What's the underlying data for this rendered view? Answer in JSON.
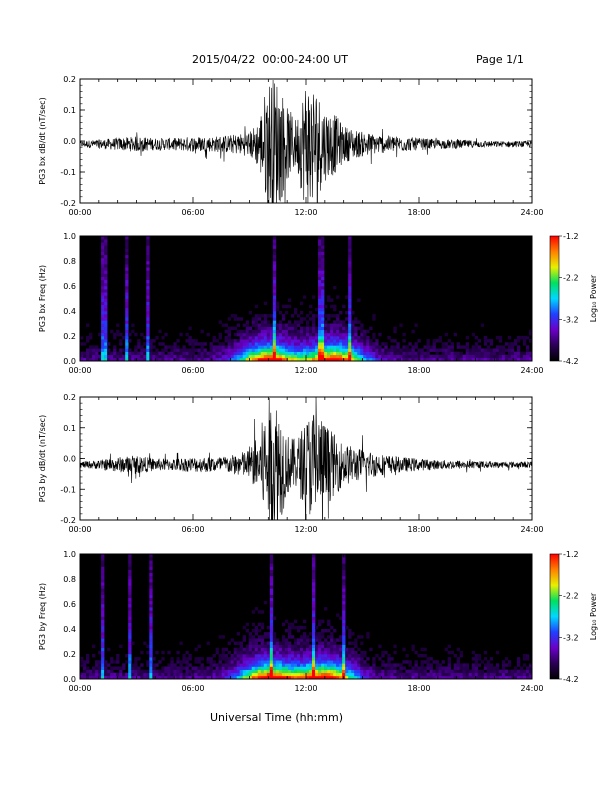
{
  "header": {
    "title": "2015/04/22  00:00-24:00 UT",
    "page": "Page 1/1"
  },
  "footer": {
    "xaxis_title": "Universal Time (hh:mm)"
  },
  "x_ticks": [
    "00:00",
    "06:00",
    "12:00",
    "18:00",
    "24:00"
  ],
  "colors": {
    "trace": "#000000",
    "spectrogram_background": "#000000",
    "colormap": [
      "#000000",
      "#2a0055",
      "#6a00c8",
      "#2040ff",
      "#00d8ff",
      "#00e060",
      "#e8f000",
      "#ff8000",
      "#ff0000"
    ]
  },
  "chart_data": [
    {
      "type": "line",
      "ylabel": "PG3 bx dB/dt (nT/sec)",
      "xlim": [
        0,
        24
      ],
      "ylim": [
        -0.2,
        0.2
      ],
      "yticks": [
        "-0.2",
        "-0.1",
        "0.0",
        "0.1",
        "0.2"
      ],
      "xticks": [
        "00:00",
        "06:00",
        "12:00",
        "18:00",
        "24:00"
      ],
      "baseline": -0.01,
      "envelope_x": [
        0,
        1,
        2,
        3,
        4,
        5,
        6,
        7,
        8,
        9,
        9.5,
        10,
        10.5,
        11,
        11.5,
        12,
        12.5,
        13,
        13.5,
        14,
        15,
        16,
        17,
        18,
        19,
        20,
        21,
        22,
        23,
        24
      ],
      "envelope_amp": [
        0.01,
        0.015,
        0.02,
        0.025,
        0.02,
        0.02,
        0.025,
        0.025,
        0.03,
        0.04,
        0.08,
        0.22,
        0.22,
        0.12,
        0.08,
        0.22,
        0.19,
        0.12,
        0.1,
        0.06,
        0.04,
        0.03,
        0.025,
        0.02,
        0.015,
        0.015,
        0.012,
        0.01,
        0.01,
        0.01
      ]
    },
    {
      "type": "heatmap",
      "ylabel": "PG3 bx Freq (Hz)",
      "xlim": [
        0,
        24
      ],
      "ylim": [
        0,
        1.0
      ],
      "yticks": [
        "0.0",
        "0.2",
        "0.4",
        "0.6",
        "0.8",
        "1.0"
      ],
      "xticks": [
        "00:00",
        "06:00",
        "12:00",
        "18:00",
        "24:00"
      ],
      "colorbar_label": "Log₁₀ Power",
      "colorbar_ticks": [
        "-1.2",
        "-2.2",
        "-3.2",
        "-4.2"
      ],
      "colorbar_range": [
        -4.2,
        -1.2
      ],
      "hotspot_hours": [
        10.0,
        13.5
      ],
      "line_features_hours": [
        1.3,
        2.5,
        3.6,
        10.3,
        12.8,
        14.3
      ]
    },
    {
      "type": "line",
      "ylabel": "PG3 by dB/dt (nT/sec)",
      "xlim": [
        0,
        24
      ],
      "ylim": [
        -0.2,
        0.2
      ],
      "yticks": [
        "-0.2",
        "-0.1",
        "0.0",
        "0.1",
        "0.2"
      ],
      "xticks": [
        "00:00",
        "06:00",
        "12:00",
        "18:00",
        "24:00"
      ],
      "baseline": -0.02,
      "envelope_x": [
        0,
        1,
        2,
        3,
        4,
        5,
        6,
        7,
        8,
        9,
        9.5,
        10,
        10.5,
        11,
        11.5,
        12,
        12.5,
        13,
        13.5,
        14,
        15,
        16,
        17,
        18,
        19,
        20,
        21,
        22,
        23,
        24
      ],
      "envelope_amp": [
        0.01,
        0.015,
        0.025,
        0.03,
        0.02,
        0.02,
        0.025,
        0.025,
        0.03,
        0.05,
        0.1,
        0.22,
        0.22,
        0.1,
        0.08,
        0.15,
        0.2,
        0.14,
        0.1,
        0.07,
        0.05,
        0.035,
        0.025,
        0.02,
        0.015,
        0.015,
        0.012,
        0.01,
        0.01,
        0.01
      ]
    },
    {
      "type": "heatmap",
      "ylabel": "PG3 by Freq (Hz)",
      "xlim": [
        0,
        24
      ],
      "ylim": [
        0,
        1.0
      ],
      "yticks": [
        "0.0",
        "0.2",
        "0.4",
        "0.6",
        "0.8",
        "1.0"
      ],
      "xticks": [
        "00:00",
        "06:00",
        "12:00",
        "18:00",
        "24:00"
      ],
      "colorbar_label": "Log₁₀ Power",
      "colorbar_ticks": [
        "-1.2",
        "-2.2",
        "-3.2",
        "-4.2"
      ],
      "colorbar_range": [
        -4.2,
        -1.2
      ],
      "hotspot_hours": [
        10.0,
        13.0
      ],
      "line_features_hours": [
        1.2,
        2.6,
        3.8,
        10.2,
        12.4,
        14.0
      ]
    }
  ]
}
